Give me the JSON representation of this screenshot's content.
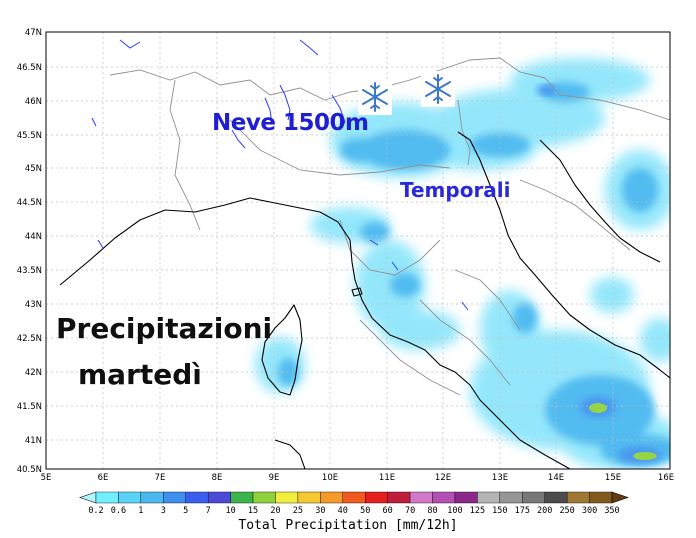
{
  "map": {
    "lon_ticks": [
      "5E",
      "6E",
      "7E",
      "8E",
      "9E",
      "10E",
      "11E",
      "12E",
      "13E",
      "14E",
      "15E",
      "16E"
    ],
    "lat_ticks": [
      "47N",
      "46.5N",
      "46N",
      "45.5N",
      "45N",
      "44.5N",
      "44N",
      "43.5N",
      "43N",
      "42.5N",
      "42N",
      "41.5N",
      "41N",
      "40.5N"
    ],
    "lon_range": [
      5,
      16
    ],
    "lat_range": [
      40.5,
      47
    ],
    "grid": true
  },
  "annotations": {
    "snow": "Neve 1500m",
    "storms": "Temporali",
    "title_line1": "Precipitazioni",
    "title_line2": "martedì"
  },
  "icons": [
    "snowflake-icon",
    "snowflake-icon"
  ],
  "legend": {
    "labels": [
      "0.2",
      "0.6",
      "1",
      "3",
      "5",
      "7",
      "10",
      "15",
      "20",
      "25",
      "30",
      "40",
      "50",
      "60",
      "70",
      "80",
      "100",
      "125",
      "150",
      "175",
      "200",
      "250",
      "300",
      "350"
    ],
    "colors": [
      "#aff8ff",
      "#70f0ff",
      "#59d4f7",
      "#4ab8f0",
      "#3f8ff0",
      "#3a5ef0",
      "#4b4bd8",
      "#3cb44b",
      "#8fd23c",
      "#f0f03c",
      "#f5c832",
      "#f59a28",
      "#f05a1e",
      "#e61e1e",
      "#be1e3c",
      "#d278c8",
      "#b450b4",
      "#8c288c",
      "#b4b4b4",
      "#969696",
      "#787878",
      "#4c4c4c",
      "#a07832",
      "#825a1e",
      "#643c14"
    ],
    "title": "Total Precipitation [mm/12h]"
  }
}
